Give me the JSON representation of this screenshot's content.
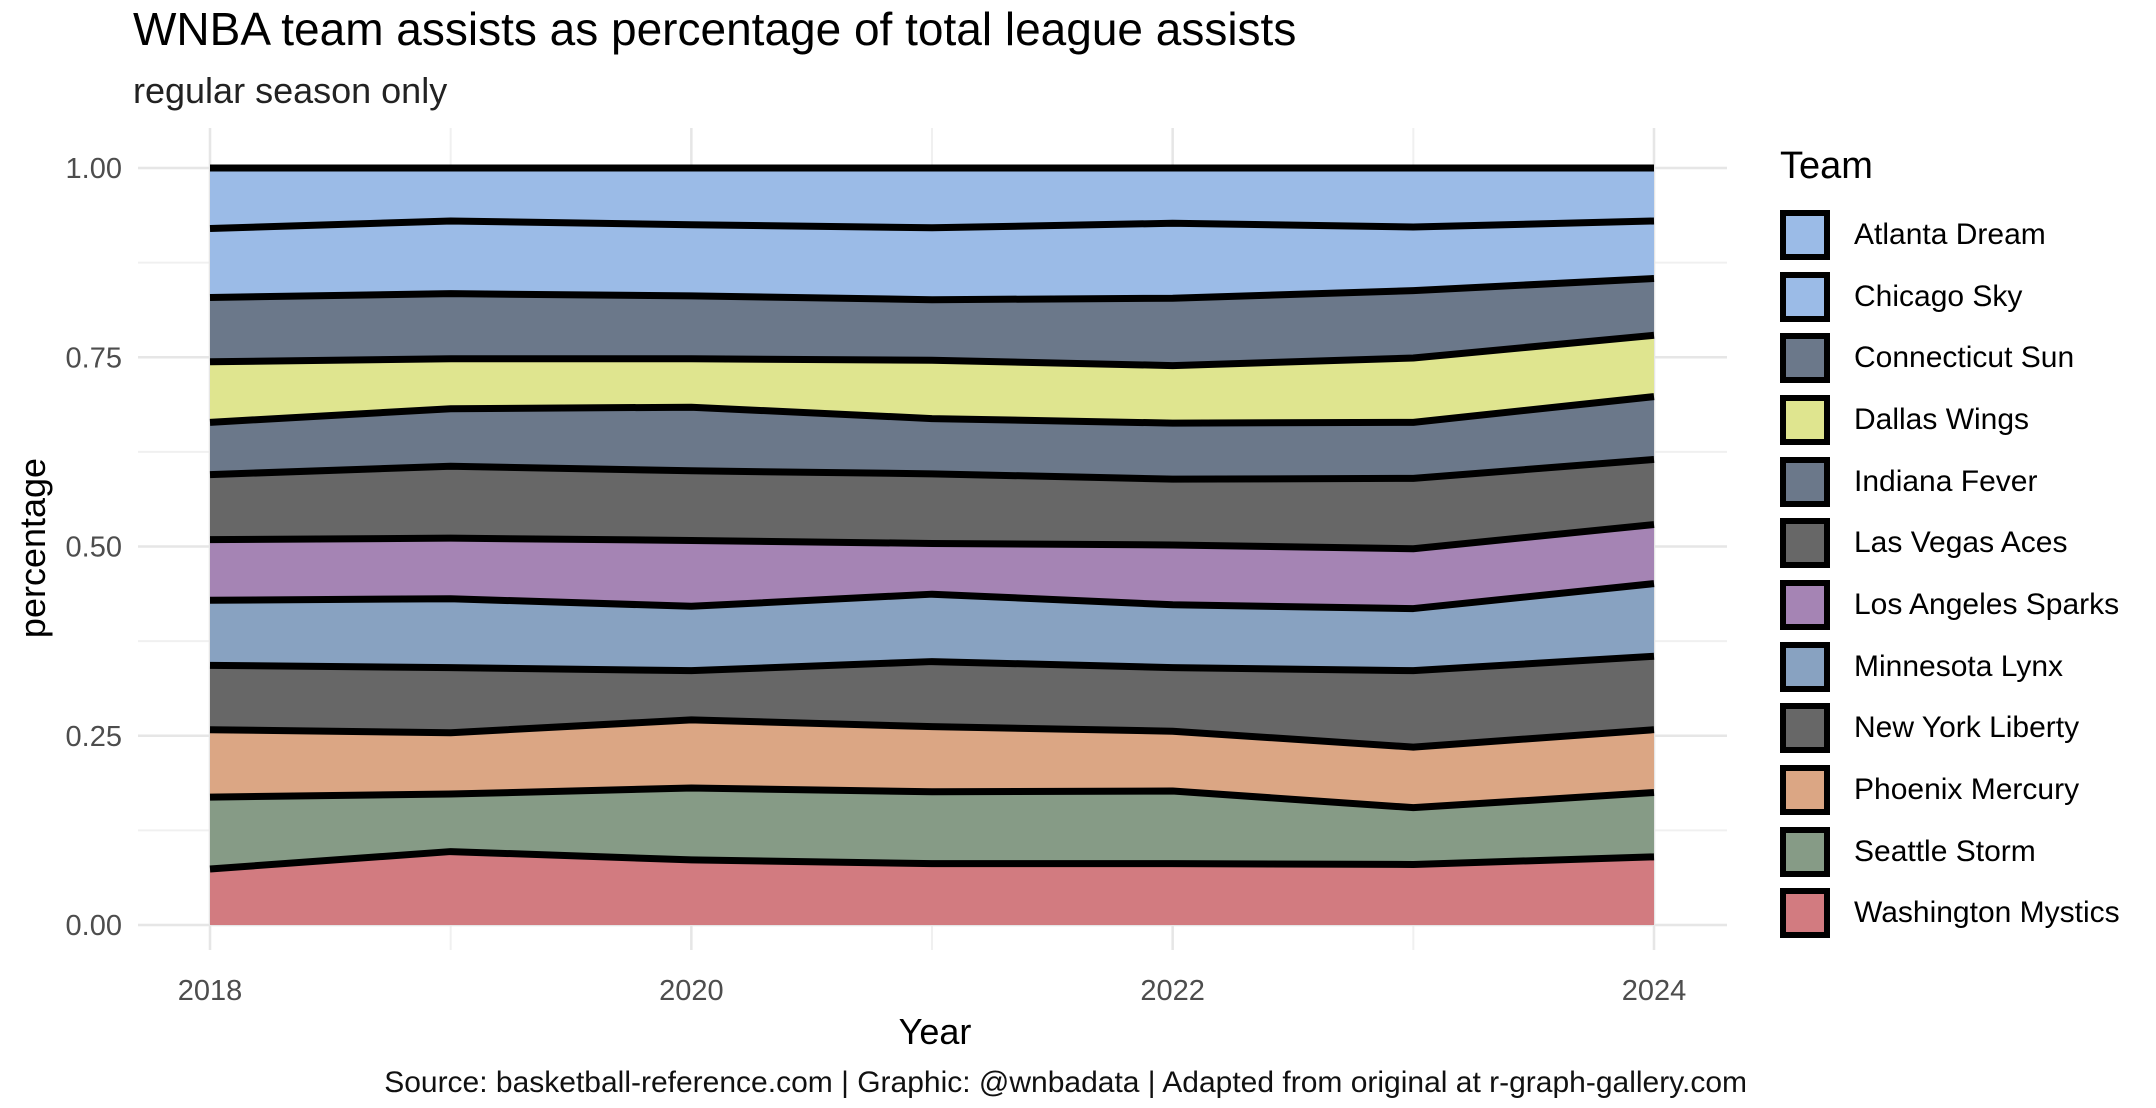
{
  "title": "WNBA team assists as percentage of total league assists",
  "subtitle": "regular season only",
  "caption": "Source: basketball-reference.com | Graphic: @wnbadata | Adapted from original at r-graph-gallery.com",
  "chart_data": {
    "type": "area",
    "stacked": true,
    "x": [
      2018,
      2019,
      2020,
      2021,
      2022,
      2023,
      2024
    ],
    "xlabel": "Year",
    "ylabel": "percentage",
    "xlim": [
      2018,
      2024
    ],
    "ylim": [
      0,
      1
    ],
    "x_ticks": [
      "2018",
      "2020",
      "2022",
      "2024"
    ],
    "y_ticks": [
      "0.00",
      "0.25",
      "0.50",
      "0.75",
      "1.00"
    ],
    "grid": true,
    "legend_title": "Team",
    "legend_position": "right",
    "series": [
      {
        "name": "Washington Mystics",
        "color": "#d27b80",
        "values": [
          0.074,
          0.097,
          0.086,
          0.081,
          0.081,
          0.08,
          0.09
        ]
      },
      {
        "name": "Seattle Storm",
        "color": "#869b86",
        "values": [
          0.095,
          0.076,
          0.095,
          0.095,
          0.096,
          0.075,
          0.085
        ]
      },
      {
        "name": "Phoenix Mercury",
        "color": "#dba684",
        "values": [
          0.089,
          0.081,
          0.09,
          0.086,
          0.079,
          0.08,
          0.083
        ]
      },
      {
        "name": "New York Liberty",
        "color": "#676767",
        "values": [
          0.085,
          0.086,
          0.065,
          0.086,
          0.084,
          0.101,
          0.097
        ]
      },
      {
        "name": "Minnesota Lynx",
        "color": "#88a2c1",
        "values": [
          0.086,
          0.091,
          0.085,
          0.089,
          0.083,
          0.082,
          0.096
        ]
      },
      {
        "name": "Los Angeles Sparks",
        "color": "#a584b4",
        "values": [
          0.08,
          0.08,
          0.087,
          0.067,
          0.079,
          0.079,
          0.078
        ]
      },
      {
        "name": "Las Vegas Aces",
        "color": "#676767",
        "values": [
          0.086,
          0.095,
          0.092,
          0.092,
          0.087,
          0.093,
          0.086
        ]
      },
      {
        "name": "Indiana Fever",
        "color": "#6b788a",
        "values": [
          0.069,
          0.076,
          0.084,
          0.073,
          0.074,
          0.074,
          0.083
        ]
      },
      {
        "name": "Dallas Wings",
        "color": "#dfe58f",
        "values": [
          0.08,
          0.066,
          0.064,
          0.077,
          0.076,
          0.085,
          0.081
        ]
      },
      {
        "name": "Connecticut Sun",
        "color": "#6b788a",
        "values": [
          0.085,
          0.086,
          0.083,
          0.08,
          0.089,
          0.089,
          0.075
        ]
      },
      {
        "name": "Chicago Sky",
        "color": "#9bbbe7",
        "values": [
          0.091,
          0.096,
          0.094,
          0.095,
          0.099,
          0.084,
          0.076
        ]
      },
      {
        "name": "Atlanta Dream",
        "color": "#9bbbe7",
        "values": [
          0.08,
          0.07,
          0.075,
          0.079,
          0.073,
          0.078,
          0.07
        ]
      }
    ]
  }
}
